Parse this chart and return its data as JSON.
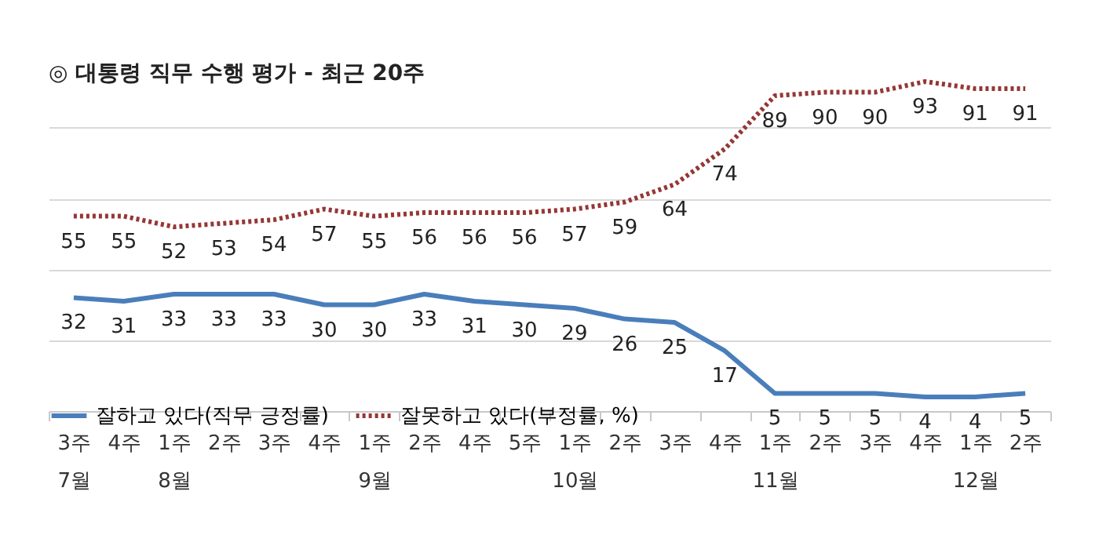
{
  "chart_data": {
    "type": "line",
    "title": "◎  대통령 직무 수행 평가 - 최근 20주",
    "categories": [
      "3주\n7월",
      "4주",
      "1주\n8월",
      "2주",
      "3주",
      "4주",
      "1주\n9월",
      "2주",
      "4주",
      "5주",
      "1주\n10월",
      "2주",
      "3주",
      "4주",
      "1주\n11월",
      "2주",
      "3주",
      "4주",
      "1주\n12월",
      "2주"
    ],
    "series": [
      {
        "name": "잘하고 있다(직무 긍정률)",
        "color": "#4a7ebb",
        "line_style": "solid",
        "values": [
          32,
          31,
          33,
          33,
          33,
          30,
          30,
          33,
          31,
          30,
          29,
          26,
          25,
          17,
          5,
          5,
          5,
          4,
          4,
          5
        ]
      },
      {
        "name": "잘못하고 있다(부정률, %)",
        "color": "#953735",
        "line_style": "dotted",
        "values": [
          55,
          55,
          52,
          53,
          54,
          57,
          55,
          56,
          56,
          56,
          57,
          59,
          64,
          74,
          89,
          90,
          90,
          93,
          91,
          91
        ]
      }
    ],
    "yticks": [
      {
        "value": 0,
        "label": null
      },
      {
        "value": 20,
        "label": null
      },
      {
        "value": 40,
        "label": null
      },
      {
        "value": 60,
        "label": null
      },
      {
        "value": 80,
        "label": null
      }
    ],
    "grid": "y",
    "tick_labels": "x",
    "legend": "bottom left",
    "data_labels": true,
    "marker": "none"
  }
}
